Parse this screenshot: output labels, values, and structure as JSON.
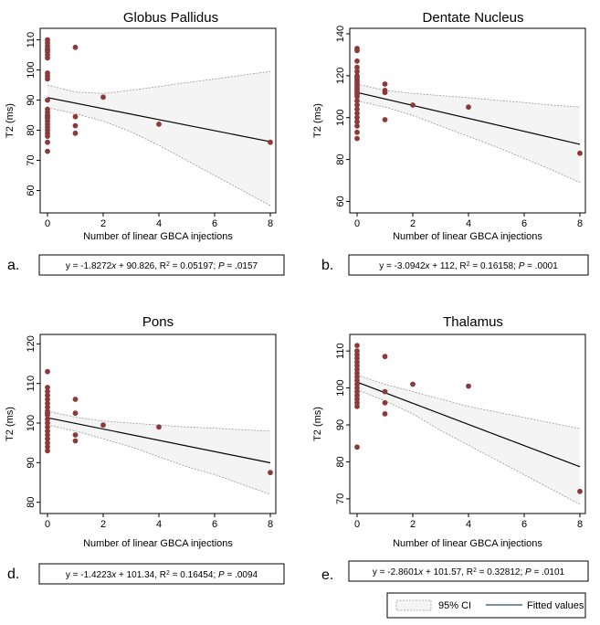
{
  "figure": {
    "legend": {
      "ci_label": "95% CI",
      "fit_label": "Fitted values"
    },
    "colors": {
      "point": "#8b3a3a",
      "band_fill": "#f4f4f4",
      "band_stroke": "#9a9a9a",
      "fit_line": "#000000",
      "legend_fit": "#2b4f8a"
    }
  },
  "chart_data": [
    {
      "type": "scatter",
      "panel": "a.",
      "title": "Globus Pallidus",
      "xlabel": "Number of linear GBCA injections",
      "ylabel": "T2 (ms)",
      "xlim": [
        0,
        8
      ],
      "ylim": [
        55,
        112
      ],
      "xticks": [
        0,
        2,
        4,
        6,
        8
      ],
      "yticks": [
        60,
        70,
        80,
        90,
        100,
        110
      ],
      "equation": {
        "lhs": "y = ",
        "slope": "-1.8272",
        "x": "x",
        "op": " + ",
        "intercept": "90.826",
        "r2_label": ", R",
        "sup": "2",
        "r2_eq": " = ",
        "r2": "0.05197",
        "sep": "; ",
        "p": "P",
        "p_eq": " = ",
        "p_val": ".0157"
      },
      "points": [
        [
          0,
          110
        ],
        [
          0,
          109
        ],
        [
          0,
          108
        ],
        [
          0,
          107
        ],
        [
          0,
          106.5
        ],
        [
          0,
          106
        ],
        [
          0,
          105
        ],
        [
          0,
          104
        ],
        [
          0,
          99
        ],
        [
          0,
          98
        ],
        [
          0,
          97
        ],
        [
          0,
          90
        ],
        [
          0,
          87
        ],
        [
          0,
          86
        ],
        [
          0,
          85
        ],
        [
          0,
          84.5
        ],
        [
          0,
          84
        ],
        [
          0,
          83
        ],
        [
          0,
          82
        ],
        [
          0,
          81
        ],
        [
          0,
          80
        ],
        [
          0,
          79
        ],
        [
          0,
          78
        ],
        [
          0,
          76
        ],
        [
          0,
          73
        ],
        [
          1,
          107.5
        ],
        [
          1,
          84.5
        ],
        [
          1,
          81.5
        ],
        [
          1,
          79
        ],
        [
          2,
          91
        ],
        [
          4,
          82
        ],
        [
          8,
          76
        ]
      ],
      "fit": {
        "slope": -1.8272,
        "intercept": 90.826
      },
      "ci_upper": [
        [
          0,
          95
        ],
        [
          1,
          92.7
        ],
        [
          2,
          92.2
        ],
        [
          3,
          93.3
        ],
        [
          4,
          94.5
        ],
        [
          5,
          95.8
        ],
        [
          6,
          97
        ],
        [
          7,
          98.3
        ],
        [
          8,
          99.5
        ]
      ],
      "ci_lower": [
        [
          0,
          87.5
        ],
        [
          1,
          85.5
        ],
        [
          2,
          83
        ],
        [
          3,
          79.5
        ],
        [
          4,
          75
        ],
        [
          5,
          70
        ],
        [
          6,
          65
        ],
        [
          7,
          60
        ],
        [
          8,
          55
        ]
      ]
    },
    {
      "type": "scatter",
      "panel": "b.",
      "title": "Dentate Nucleus",
      "xlabel": "Number of linear GBCA injections",
      "ylabel": "T2 (ms)",
      "xlim": [
        0,
        8
      ],
      "ylim": [
        58,
        140
      ],
      "xticks": [
        0,
        2,
        4,
        6,
        8
      ],
      "yticks": [
        60,
        80,
        100,
        120,
        140
      ],
      "equation": {
        "lhs": "y = ",
        "slope": "-3.0942",
        "x": "x",
        "op": " + ",
        "intercept": "112",
        "r2_label": ", R",
        "sup": "2",
        "r2_eq": " = ",
        "r2": "0.16158",
        "sep": "; ",
        "p": "P",
        "p_eq": " = ",
        "p_val": ".0001"
      },
      "points": [
        [
          0,
          133
        ],
        [
          0,
          132
        ],
        [
          0,
          127
        ],
        [
          0,
          124
        ],
        [
          0,
          122
        ],
        [
          0,
          120
        ],
        [
          0,
          119
        ],
        [
          0,
          118
        ],
        [
          0,
          117
        ],
        [
          0,
          116
        ],
        [
          0,
          115
        ],
        [
          0,
          114
        ],
        [
          0,
          113
        ],
        [
          0,
          112
        ],
        [
          0,
          111
        ],
        [
          0,
          110
        ],
        [
          0,
          108
        ],
        [
          0,
          106
        ],
        [
          0,
          104
        ],
        [
          0,
          102
        ],
        [
          0,
          100
        ],
        [
          0,
          98
        ],
        [
          0,
          96
        ],
        [
          0,
          93
        ],
        [
          0,
          90
        ],
        [
          1,
          116
        ],
        [
          1,
          113
        ],
        [
          1,
          112
        ],
        [
          1,
          99
        ],
        [
          2,
          106
        ],
        [
          4,
          105
        ],
        [
          8,
          83
        ]
      ],
      "fit": {
        "slope": -3.0942,
        "intercept": 112
      },
      "ci_upper": [
        [
          0,
          116
        ],
        [
          1,
          113
        ],
        [
          2,
          111.5
        ],
        [
          3,
          110.5
        ],
        [
          4,
          109.5
        ],
        [
          5,
          108.3
        ],
        [
          6,
          107.2
        ],
        [
          7,
          106
        ],
        [
          8,
          105
        ]
      ],
      "ci_lower": [
        [
          0,
          108
        ],
        [
          1,
          105
        ],
        [
          2,
          101
        ],
        [
          3,
          96
        ],
        [
          4,
          91
        ],
        [
          5,
          86
        ],
        [
          6,
          80.5
        ],
        [
          7,
          75
        ],
        [
          8,
          69
        ]
      ]
    },
    {
      "type": "scatter",
      "panel": "d.",
      "title": "Pons",
      "xlabel": "Number of linear GBCA injections",
      "ylabel": "T2 (ms)",
      "xlim": [
        0,
        8
      ],
      "ylim": [
        79,
        121
      ],
      "xticks": [
        0,
        2,
        4,
        6,
        8
      ],
      "yticks": [
        80,
        90,
        100,
        110,
        120
      ],
      "equation": {
        "lhs": "y = ",
        "slope": "-1.4223",
        "x": "x",
        "op": " + ",
        "intercept": "101.34",
        "r2_label": ", R",
        "sup": "2",
        "r2_eq": " = ",
        "r2": "0.16454",
        "sep": "; ",
        "p": "P",
        "p_eq": " = ",
        "p_val": ".0094"
      },
      "points": [
        [
          0,
          113
        ],
        [
          0,
          109
        ],
        [
          0,
          108
        ],
        [
          0,
          107
        ],
        [
          0,
          106
        ],
        [
          0,
          105
        ],
        [
          0,
          104
        ],
        [
          0,
          103
        ],
        [
          0,
          102.5
        ],
        [
          0,
          102
        ],
        [
          0,
          101
        ],
        [
          0,
          100
        ],
        [
          0,
          99
        ],
        [
          0,
          98
        ],
        [
          0,
          97
        ],
        [
          0,
          96
        ],
        [
          0,
          95
        ],
        [
          0,
          94
        ],
        [
          0,
          93
        ],
        [
          1,
          106
        ],
        [
          1,
          102.5
        ],
        [
          1,
          97
        ],
        [
          1,
          95.5
        ],
        [
          2,
          99.5
        ],
        [
          4,
          99
        ],
        [
          8,
          87.5
        ]
      ],
      "fit": {
        "slope": -1.4223,
        "intercept": 101.34
      },
      "ci_upper": [
        [
          0,
          103
        ],
        [
          1,
          101.5
        ],
        [
          2,
          100.5
        ],
        [
          3,
          100
        ],
        [
          4,
          99.5
        ],
        [
          5,
          99
        ],
        [
          6,
          98.7
        ],
        [
          7,
          98.3
        ],
        [
          8,
          98
        ]
      ],
      "ci_lower": [
        [
          0,
          99.5
        ],
        [
          1,
          98
        ],
        [
          2,
          96
        ],
        [
          3,
          94
        ],
        [
          4,
          91.5
        ],
        [
          5,
          89
        ],
        [
          6,
          87
        ],
        [
          7,
          84.5
        ],
        [
          8,
          82
        ]
      ]
    },
    {
      "type": "scatter",
      "panel": "e.",
      "title": "Thalamus",
      "xlabel": "Number of linear GBCA injections",
      "ylabel": "T2 (ms)",
      "xlim": [
        0,
        8
      ],
      "ylim": [
        68,
        113
      ],
      "xticks": [
        0,
        2,
        4,
        6,
        8
      ],
      "yticks": [
        70,
        80,
        90,
        100,
        110
      ],
      "equation": {
        "lhs": "y = ",
        "slope": "-2.8601",
        "x": "x",
        "op": " + ",
        "intercept": "101.57",
        "r2_label": ", R",
        "sup": "2",
        "r2_eq": " = ",
        "r2": "0.32812",
        "sep": "; ",
        "p": "P",
        "p_eq": " = ",
        "p_val": ".0101"
      },
      "points": [
        [
          0,
          111.5
        ],
        [
          0,
          110
        ],
        [
          0,
          109
        ],
        [
          0,
          108
        ],
        [
          0,
          107
        ],
        [
          0,
          106
        ],
        [
          0,
          105
        ],
        [
          0,
          104
        ],
        [
          0,
          103
        ],
        [
          0,
          102
        ],
        [
          0,
          101
        ],
        [
          0,
          100
        ],
        [
          0,
          99
        ],
        [
          0,
          98
        ],
        [
          0,
          97
        ],
        [
          0,
          96
        ],
        [
          0,
          95
        ],
        [
          0,
          84
        ],
        [
          1,
          108.5
        ],
        [
          1,
          99
        ],
        [
          1,
          96
        ],
        [
          1,
          93
        ],
        [
          2,
          101
        ],
        [
          4,
          100.5
        ],
        [
          8,
          72
        ]
      ],
      "fit": {
        "slope": -2.8601,
        "intercept": 101.57
      },
      "ci_upper": [
        [
          0,
          103.5
        ],
        [
          1,
          101
        ],
        [
          2,
          99
        ],
        [
          3,
          97
        ],
        [
          4,
          95
        ],
        [
          5,
          93.5
        ],
        [
          6,
          92
        ],
        [
          7,
          90.5
        ],
        [
          8,
          89
        ]
      ],
      "ci_lower": [
        [
          0,
          99.5
        ],
        [
          1,
          96.5
        ],
        [
          2,
          93
        ],
        [
          3,
          88.5
        ],
        [
          4,
          84.5
        ],
        [
          5,
          80.5
        ],
        [
          6,
          76.5
        ],
        [
          7,
          72.5
        ],
        [
          8,
          68.5
        ]
      ]
    }
  ]
}
